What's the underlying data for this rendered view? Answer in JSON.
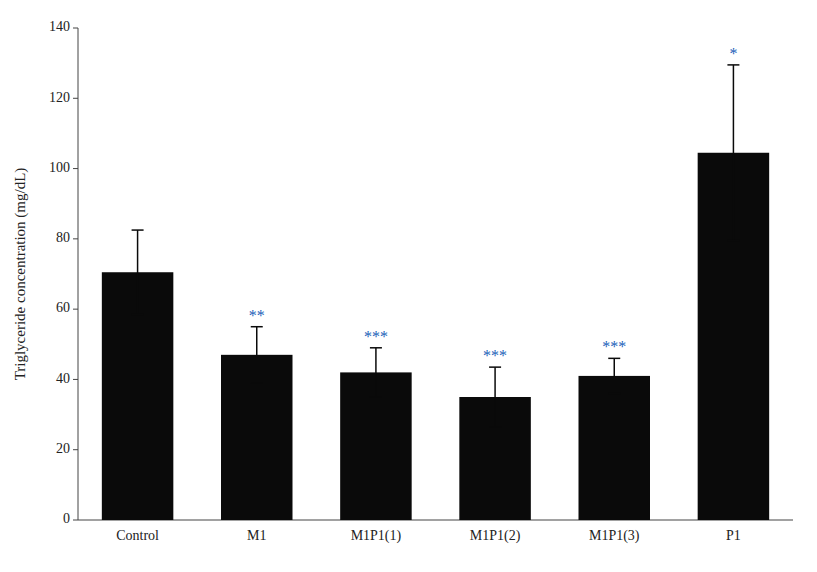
{
  "chart_data": {
    "type": "bar",
    "categories": [
      "Control",
      "M1",
      "M1P1(1)",
      "M1P1(2)",
      "M1P1(3)",
      "P1"
    ],
    "values": [
      70.5,
      47.0,
      42.0,
      35.0,
      41.0,
      104.5
    ],
    "errors": [
      12.0,
      8.0,
      7.0,
      8.5,
      5.0,
      25.0
    ],
    "color": "#0a0a0a",
    "annotations": [
      null,
      {
        "text": "**",
        "color": "#1a5eb8"
      },
      {
        "text": "***",
        "color": "#1a5eb8"
      },
      {
        "text": "***",
        "color": "#1a5eb8"
      },
      {
        "text": "***",
        "color": "#1a5eb8"
      },
      {
        "text": "*",
        "color": "#1a5eb8"
      }
    ],
    "ylabel": "Triglyceride concentration (mg/dL)",
    "ylim": [
      0,
      140
    ],
    "yticks": [
      0,
      20,
      40,
      60,
      80,
      100,
      120,
      140
    ],
    "grid": false
  }
}
